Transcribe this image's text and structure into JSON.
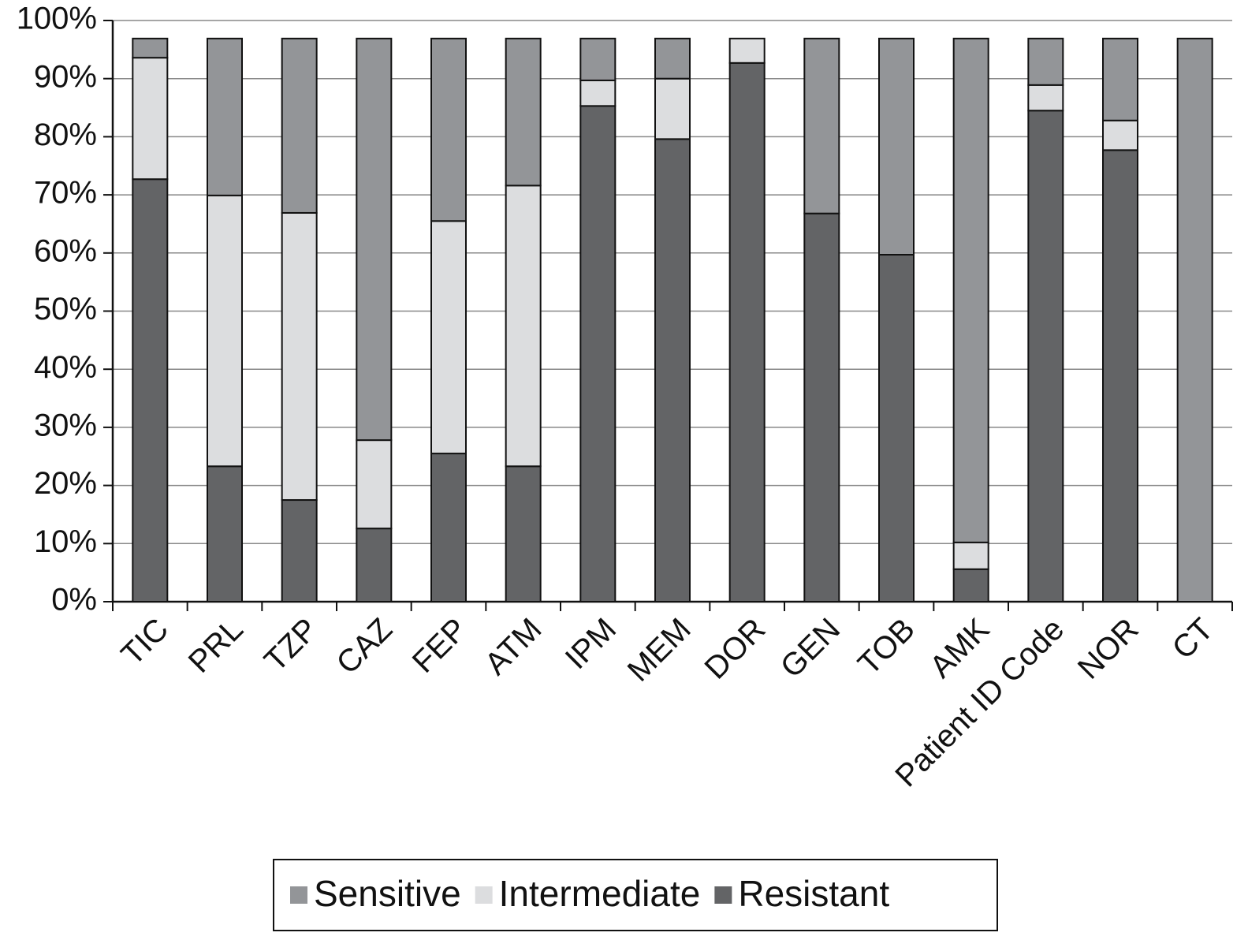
{
  "chart_data": {
    "type": "stacked_bar",
    "categories": [
      "TIC",
      "PRL",
      "TZP",
      "CAZ",
      "FEP",
      "ATM",
      "IPM",
      "MEM",
      "DOR",
      "GEN",
      "TOB",
      "AMK",
      "Patient ID Code",
      "NOR",
      "CT"
    ],
    "series": [
      {
        "name": "Sensitive",
        "color": "#939598",
        "values": [
          3.3,
          27.0,
          30.0,
          69.1,
          31.4,
          25.3,
          7.2,
          6.9,
          0,
          30.1,
          37.2,
          86.7,
          8.0,
          14.1,
          96.9
        ]
      },
      {
        "name": "Intermediate",
        "color": "#dcdddf",
        "values": [
          20.9,
          46.6,
          49.4,
          15.2,
          40.0,
          48.3,
          4.4,
          10.4,
          4.2,
          0,
          0,
          4.6,
          4.4,
          5.1,
          0
        ]
      },
      {
        "name": "Resistant",
        "color": "#636466",
        "values": [
          72.7,
          23.3,
          17.5,
          12.6,
          25.5,
          23.3,
          85.3,
          79.6,
          92.7,
          66.8,
          59.7,
          5.6,
          84.5,
          77.7,
          0
        ]
      }
    ],
    "ylim": [
      0,
      100
    ],
    "yticks": [
      {
        "value": 0,
        "label": "0%"
      },
      {
        "value": 10,
        "label": "10%"
      },
      {
        "value": 20,
        "label": "20%"
      },
      {
        "value": 30,
        "label": "30%"
      },
      {
        "value": 40,
        "label": "40%"
      },
      {
        "value": 50,
        "label": "50%"
      },
      {
        "value": 60,
        "label": "60%"
      },
      {
        "value": 70,
        "label": "70%"
      },
      {
        "value": 80,
        "label": "80%"
      },
      {
        "value": 90,
        "label": "90%"
      },
      {
        "value": 100,
        "label": "100%"
      }
    ],
    "grid": true,
    "legend": "bottom"
  }
}
